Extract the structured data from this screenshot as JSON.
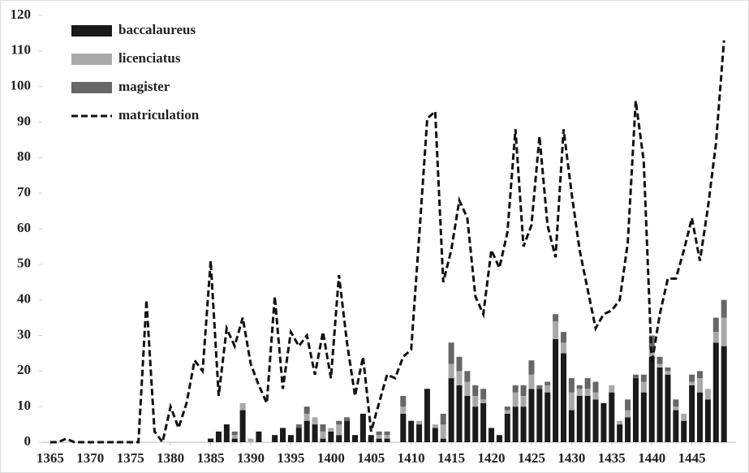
{
  "chart_data": {
    "type": "bar",
    "stacked": true,
    "grid": false,
    "legend": "top-left",
    "x": [
      1365,
      1366,
      1367,
      1368,
      1369,
      1370,
      1371,
      1372,
      1373,
      1374,
      1375,
      1376,
      1377,
      1378,
      1379,
      1380,
      1381,
      1382,
      1383,
      1384,
      1385,
      1386,
      1387,
      1388,
      1389,
      1390,
      1391,
      1392,
      1393,
      1394,
      1395,
      1396,
      1397,
      1398,
      1399,
      1400,
      1401,
      1402,
      1403,
      1404,
      1405,
      1406,
      1407,
      1408,
      1409,
      1410,
      1411,
      1412,
      1413,
      1414,
      1415,
      1416,
      1417,
      1418,
      1419,
      1420,
      1421,
      1422,
      1423,
      1424,
      1425,
      1426,
      1427,
      1428,
      1429,
      1430,
      1431,
      1432,
      1433,
      1434,
      1435,
      1436,
      1437,
      1438,
      1439,
      1440,
      1441,
      1442,
      1443,
      1444,
      1445,
      1446,
      1447,
      1448,
      1449
    ],
    "xlim": [
      1364,
      1450.5
    ],
    "xticks": [
      1365,
      1370,
      1375,
      1380,
      1385,
      1390,
      1395,
      1400,
      1405,
      1410,
      1415,
      1420,
      1425,
      1430,
      1435,
      1440,
      1445
    ],
    "ylim": [
      0,
      120
    ],
    "yticks": [
      0,
      10,
      20,
      30,
      40,
      50,
      60,
      70,
      80,
      90,
      100,
      110,
      120
    ],
    "series": [
      {
        "name": "baccalaureus",
        "type": "bar",
        "color": "#1a1a1a",
        "values": [
          0,
          0,
          0,
          0,
          0,
          0,
          0,
          0,
          0,
          0,
          0,
          0,
          0,
          0,
          0,
          0,
          0,
          0,
          0,
          0,
          1,
          3,
          5,
          1,
          9,
          0,
          3,
          0,
          2,
          4,
          2,
          4,
          6,
          5,
          1,
          3,
          2,
          6,
          2,
          8,
          2,
          1,
          1,
          0,
          8,
          6,
          5,
          15,
          4,
          1,
          18,
          16,
          13,
          10,
          11,
          4,
          2,
          8,
          10,
          10,
          15,
          15,
          14,
          29,
          25,
          9,
          13,
          13,
          12,
          11,
          14,
          5,
          7,
          18,
          14,
          24,
          21,
          19,
          9,
          6,
          16,
          14,
          12,
          28,
          27
        ]
      },
      {
        "name": "licenciatus",
        "type": "bar",
        "color": "#a9a9a9",
        "values": [
          0,
          0,
          0,
          0,
          0,
          0,
          0,
          0,
          0,
          0,
          0,
          0,
          0,
          0,
          0,
          0,
          0,
          0,
          0,
          0,
          0,
          0,
          0,
          1,
          2,
          1,
          0,
          0,
          0,
          0,
          0,
          0,
          2,
          2,
          2,
          1,
          3,
          0,
          0,
          0,
          0,
          1,
          1,
          0,
          2,
          0,
          1,
          0,
          1,
          4,
          4,
          4,
          4,
          3,
          1,
          0,
          0,
          1,
          4,
          3,
          4,
          0,
          2,
          5,
          3,
          5,
          2,
          2,
          2,
          0,
          2,
          1,
          2,
          0,
          3,
          2,
          1,
          1,
          1,
          2,
          1,
          4,
          3,
          3,
          8
        ]
      },
      {
        "name": "magister",
        "type": "bar",
        "color": "#666666",
        "values": [
          0,
          0,
          0,
          0,
          0,
          0,
          0,
          0,
          0,
          0,
          0,
          0,
          0,
          0,
          0,
          0,
          0,
          0,
          0,
          0,
          0,
          0,
          0,
          1,
          0,
          0,
          0,
          0,
          0,
          0,
          0,
          1,
          2,
          0,
          2,
          0,
          1,
          1,
          0,
          0,
          0,
          1,
          1,
          0,
          3,
          0,
          0,
          0,
          0,
          3,
          6,
          4,
          3,
          3,
          3,
          0,
          0,
          1,
          2,
          3,
          4,
          1,
          1,
          2,
          3,
          4,
          1,
          3,
          3,
          0,
          0,
          0,
          3,
          1,
          2,
          4,
          2,
          1,
          2,
          0,
          2,
          2,
          0,
          4,
          5
        ]
      },
      {
        "name": "matriculation",
        "type": "line",
        "dashed": true,
        "color": "#111111",
        "values": [
          0,
          0,
          1,
          0,
          0,
          0,
          0,
          0,
          0,
          0,
          0,
          0,
          40,
          3,
          0,
          10,
          4,
          11,
          23,
          20,
          51,
          13,
          32,
          27,
          35,
          22,
          16,
          11,
          41,
          15,
          31,
          27,
          30,
          19,
          31,
          18,
          47,
          28,
          13,
          24,
          3,
          11,
          19,
          18,
          24,
          26,
          58,
          91,
          93,
          45,
          54,
          68,
          63,
          41,
          36,
          54,
          49,
          59,
          88,
          55,
          61,
          86,
          61,
          52,
          88,
          70,
          54,
          43,
          32,
          36,
          37,
          40,
          56,
          96,
          79,
          22,
          36,
          46,
          46,
          54,
          63,
          51,
          66,
          84,
          113
        ]
      }
    ]
  }
}
